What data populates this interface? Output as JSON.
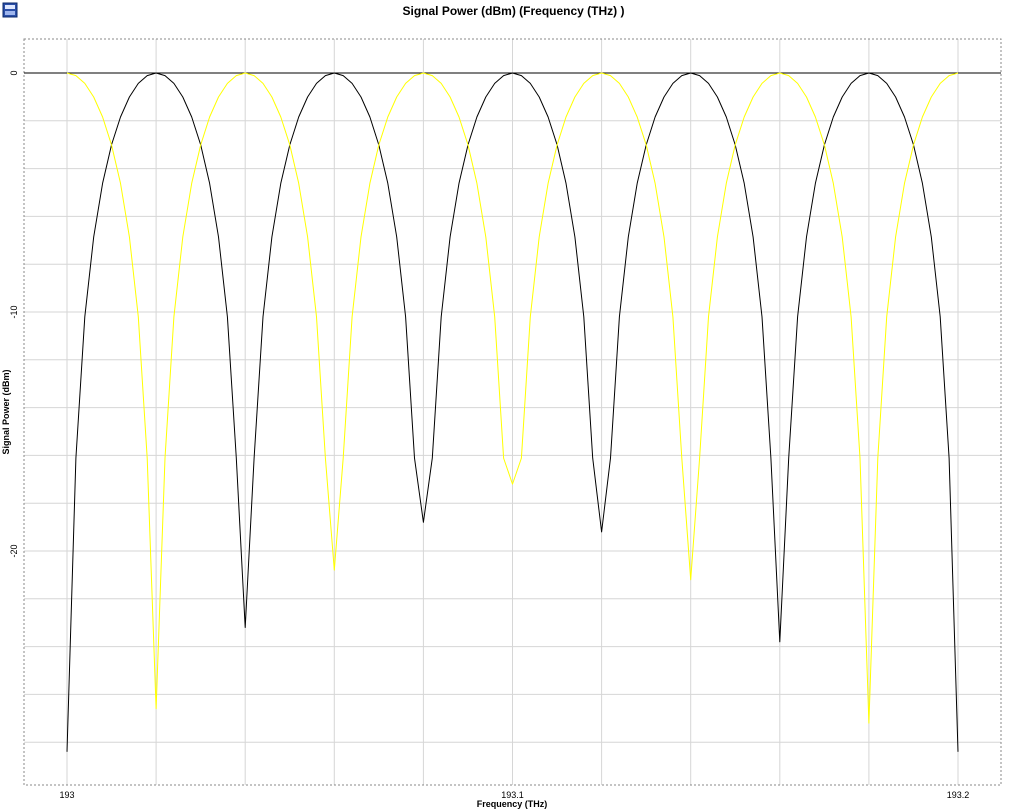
{
  "chart_data": {
    "type": "line",
    "title": "Signal Power (dBm) (Frequency (THz) )",
    "xlabel": "Frequency (THz)",
    "ylabel": "Signal Power (dBm)",
    "xlim": [
      193.0,
      193.2
    ],
    "ylim": [
      -30,
      1.5
    ],
    "x_ticks": [
      {
        "value": 193.0,
        "label": "193"
      },
      {
        "value": 193.1,
        "label": "193.1"
      },
      {
        "value": 193.2,
        "label": "193.2"
      }
    ],
    "y_ticks": [
      {
        "value": 0,
        "label": "0"
      },
      {
        "value": -10,
        "label": "-10"
      },
      {
        "value": -20,
        "label": "-20"
      }
    ],
    "grid": true,
    "series": [
      {
        "color": "#000000",
        "peaks": [
          193.02,
          193.06,
          193.1,
          193.14,
          193.18
        ],
        "nulls": [
          {
            "x": 193.0,
            "y": -28.4
          },
          {
            "x": 193.04,
            "y": -23.2
          },
          {
            "x": 193.08,
            "y": -18.8
          },
          {
            "x": 193.12,
            "y": -19.2
          },
          {
            "x": 193.16,
            "y": -23.8
          },
          {
            "x": 193.2,
            "y": -28.4
          }
        ]
      },
      {
        "color": "#ffff00",
        "peaks": [
          193.0,
          193.04,
          193.08,
          193.12,
          193.16,
          193.2
        ],
        "nulls": [
          {
            "x": 193.02,
            "y": -26.6
          },
          {
            "x": 193.06,
            "y": -20.8
          },
          {
            "x": 193.1,
            "y": -17.2
          },
          {
            "x": 193.14,
            "y": -21.2
          },
          {
            "x": 193.18,
            "y": -27.2
          }
        ]
      }
    ],
    "reference_line": {
      "y": 0,
      "color": "#000000"
    }
  }
}
